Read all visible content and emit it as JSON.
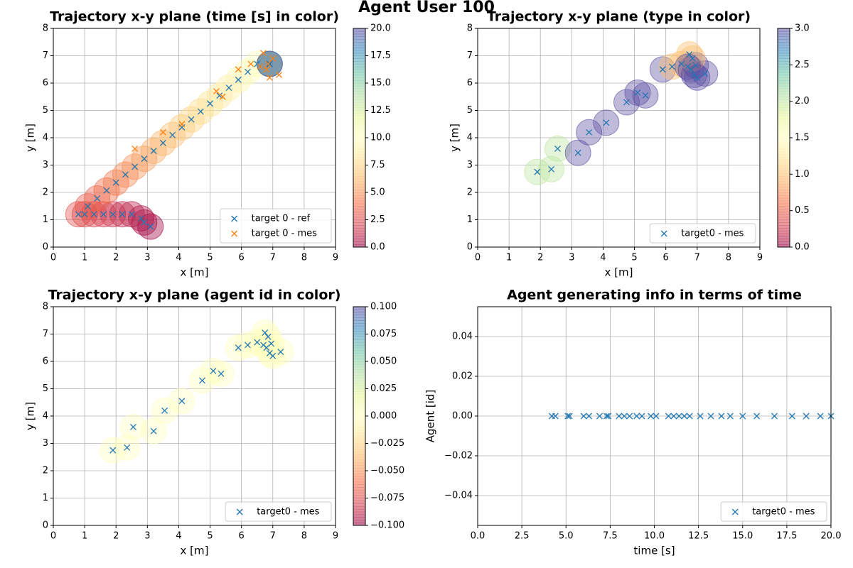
{
  "title": "Agent User 100",
  "chart_data": [
    {
      "type": "scatter",
      "title": "Trajectory x-y plane  (time [s] in color)",
      "xlabel": "x [m]",
      "ylabel": "y [m]",
      "xlim": [
        0,
        9
      ],
      "ylim": [
        0,
        8
      ],
      "xticks": [
        0,
        1,
        2,
        3,
        4,
        5,
        6,
        7,
        8,
        9
      ],
      "yticks": [
        0,
        1,
        2,
        3,
        4,
        5,
        6,
        7,
        8
      ],
      "grid": true,
      "legend": "lower right",
      "colormap": "Spectral",
      "clim": [
        0,
        20
      ],
      "cticks": [
        {
          "value": 0,
          "label": "0.0"
        },
        2.5,
        {
          "value": 5,
          "label": "5.0"
        },
        7.5,
        {
          "value": 10,
          "label": "10.0"
        },
        12.5,
        {
          "value": 15,
          "label": "15.0"
        },
        17.5,
        {
          "value": 20,
          "label": "20.0"
        }
      ],
      "series": [
        {
          "name": "target 0 - ref",
          "color": "#1f77b4",
          "x": [
            3.1,
            2.9,
            2.8,
            2.5,
            2.2,
            1.9,
            1.6,
            1.3,
            1.0,
            0.8,
            1.1,
            1.4,
            1.7,
            2.0,
            2.3,
            2.6,
            2.9,
            3.2,
            3.5,
            3.8,
            4.1,
            4.4,
            4.7,
            5.0,
            5.3,
            5.6,
            5.9,
            6.2,
            6.5,
            6.9,
            6.9,
            6.9,
            6.9,
            6.9
          ],
          "y": [
            0.75,
            0.9,
            1.05,
            1.2,
            1.2,
            1.2,
            1.2,
            1.2,
            1.2,
            1.2,
            1.49,
            1.78,
            2.07,
            2.36,
            2.65,
            2.94,
            3.23,
            3.52,
            3.81,
            4.1,
            4.38,
            4.67,
            4.96,
            5.25,
            5.54,
            5.83,
            6.12,
            6.41,
            6.7,
            6.7,
            6.7,
            6.7,
            6.7,
            6.7
          ],
          "color_values": [
            0,
            0.3,
            0.6,
            0.9,
            1.2,
            1.5,
            1.8,
            2.1,
            2.4,
            2.7,
            3.0,
            3.4,
            3.8,
            4.2,
            4.6,
            5.0,
            5.4,
            5.8,
            6.2,
            6.6,
            7.0,
            7.4,
            7.8,
            8.2,
            8.6,
            9.0,
            9.4,
            9.8,
            10.2,
            11,
            13,
            15,
            17,
            20
          ]
        },
        {
          "name": "target 0 - mes",
          "color": "#ff7f0e",
          "x": [
            2.6,
            3.5,
            4.1,
            5.2,
            5.4,
            5.9,
            6.3,
            6.6,
            6.7,
            6.8,
            6.85,
            6.9,
            7.0,
            7.2
          ],
          "y": [
            3.6,
            4.2,
            4.5,
            5.7,
            5.5,
            6.5,
            6.7,
            6.6,
            7.1,
            6.5,
            6.7,
            6.2,
            6.9,
            6.3
          ]
        }
      ]
    },
    {
      "type": "scatter",
      "title": "Trajectory x-y plane (type in color)",
      "xlabel": "x [m]",
      "ylabel": "y [m]",
      "xlim": [
        0,
        9
      ],
      "ylim": [
        0,
        8
      ],
      "xticks": [
        0,
        1,
        2,
        3,
        4,
        5,
        6,
        7,
        8,
        9
      ],
      "yticks": [
        0,
        1,
        2,
        3,
        4,
        5,
        6,
        7,
        8
      ],
      "grid": true,
      "legend": "lower right",
      "colormap": "Spectral",
      "clim": [
        0,
        3
      ],
      "cticks": [
        {
          "value": 0,
          "label": "0.0"
        },
        0.5,
        {
          "value": 1,
          "label": "1.0"
        },
        1.5,
        {
          "value": 2,
          "label": "2.0"
        },
        2.5,
        {
          "value": 3,
          "label": "3.0"
        }
      ],
      "series": [
        {
          "name": "target0 - mes",
          "color": "#1f77b4",
          "x": [
            1.9,
            2.35,
            2.55,
            3.2,
            3.55,
            4.1,
            4.75,
            5.1,
            5.35,
            5.9,
            6.2,
            6.5,
            6.75,
            6.8,
            6.9,
            7.25,
            6.95,
            6.85,
            7.0,
            6.7
          ],
          "y": [
            2.75,
            2.85,
            3.6,
            3.45,
            4.2,
            4.55,
            5.3,
            5.65,
            5.55,
            6.5,
            6.6,
            6.7,
            7.05,
            6.5,
            6.3,
            6.35,
            6.65,
            6.9,
            6.2,
            6.6
          ],
          "color_values": [
            2,
            2,
            2,
            3,
            3,
            3,
            3,
            3,
            3,
            3,
            1,
            1,
            1,
            3,
            3,
            3,
            3,
            1,
            3,
            3
          ]
        }
      ]
    },
    {
      "type": "scatter",
      "title": "Trajectory x-y plane (agent id in color)",
      "xlabel": "x [m]",
      "ylabel": "y [m]",
      "xlim": [
        0,
        9
      ],
      "ylim": [
        0,
        8
      ],
      "xticks": [
        0,
        1,
        2,
        3,
        4,
        5,
        6,
        7,
        8,
        9
      ],
      "yticks": [
        0,
        1,
        2,
        3,
        4,
        5,
        6,
        7,
        8
      ],
      "grid": true,
      "legend": "lower right",
      "colormap": "Spectral",
      "clim": [
        -0.1,
        0.1
      ],
      "cticks": [
        {
          "value": -0.1,
          "label": "−0.100"
        },
        {
          "value": -0.075,
          "label": "−0.075"
        },
        {
          "value": -0.05,
          "label": "−0.050"
        },
        {
          "value": -0.025,
          "label": "−0.025"
        },
        {
          "value": 0,
          "label": "0.000"
        },
        0.025,
        {
          "value": 0.05,
          "label": "0.050"
        },
        0.075,
        {
          "value": 0.1,
          "label": "0.100"
        }
      ],
      "series": [
        {
          "name": "target0 - mes",
          "color": "#1f77b4",
          "x": [
            1.9,
            2.35,
            2.55,
            3.2,
            3.55,
            4.1,
            4.75,
            5.1,
            5.35,
            5.9,
            6.2,
            6.5,
            6.75,
            6.8,
            6.9,
            7.25,
            6.95,
            6.85,
            7.0,
            6.7
          ],
          "y": [
            2.75,
            2.85,
            3.6,
            3.45,
            4.2,
            4.55,
            5.3,
            5.65,
            5.55,
            6.5,
            6.6,
            6.7,
            7.05,
            6.5,
            6.3,
            6.35,
            6.65,
            6.9,
            6.2,
            6.6
          ],
          "color_values": [
            0,
            0,
            0,
            0,
            0,
            0,
            0,
            0,
            0,
            0,
            0,
            0,
            0,
            0,
            0,
            0,
            0,
            0,
            0,
            0
          ]
        }
      ]
    },
    {
      "type": "scatter",
      "title": "Agent generating info in terms of time",
      "xlabel": "time [s]",
      "ylabel": "Agent [id]",
      "xlim": [
        0,
        20
      ],
      "ylim": [
        -0.055,
        0.055
      ],
      "xticks": [
        {
          "value": 0,
          "label": "0.0"
        },
        2.5,
        {
          "value": 5,
          "label": "5.0"
        },
        7.5,
        {
          "value": 10,
          "label": "10.0"
        },
        12.5,
        {
          "value": 15,
          "label": "15.0"
        },
        17.5,
        {
          "value": 20,
          "label": "20.0"
        }
      ],
      "yticks": [
        {
          "value": -0.04,
          "label": "−0.04"
        },
        {
          "value": -0.02,
          "label": "−0.02"
        },
        {
          "value": 0,
          "label": "0.00"
        },
        0.02,
        0.04
      ],
      "grid": true,
      "legend": "lower right",
      "series": [
        {
          "name": "target0 - mes",
          "color": "#1f77b4",
          "x": [
            4.2,
            4.4,
            5.1,
            5.2,
            6.0,
            6.3,
            6.9,
            7.3,
            7.4,
            8.0,
            8.3,
            8.6,
            9.0,
            9.3,
            9.8,
            10.1,
            10.8,
            11.1,
            11.4,
            11.7,
            12.0,
            12.6,
            13.2,
            13.8,
            14.3,
            15.0,
            15.8,
            16.8,
            17.8,
            18.6,
            19.4,
            20.0
          ],
          "y": [
            0,
            0,
            0,
            0,
            0,
            0,
            0,
            0,
            0,
            0,
            0,
            0,
            0,
            0,
            0,
            0,
            0,
            0,
            0,
            0,
            0,
            0,
            0,
            0,
            0,
            0,
            0,
            0,
            0,
            0,
            0,
            0
          ]
        }
      ]
    }
  ]
}
